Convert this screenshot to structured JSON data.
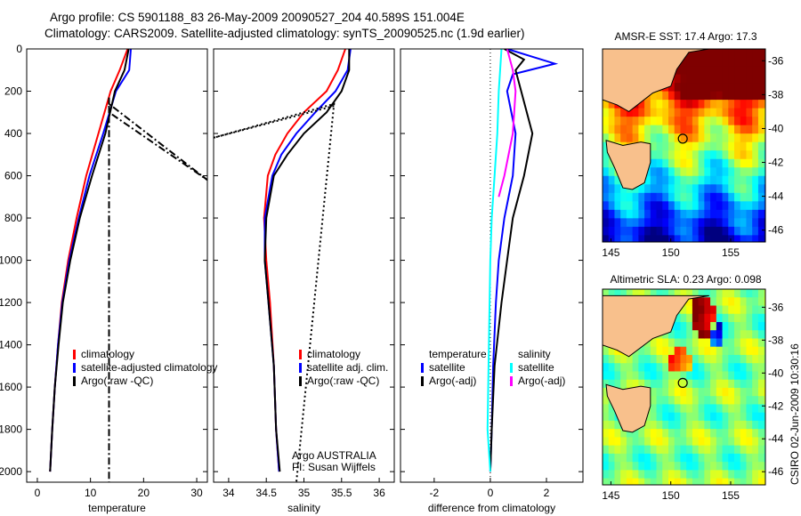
{
  "title_line1": "Argo profile: CS 5901188_83 26-May-2009 20090527_204 40.589S 151.004E",
  "title_line2": "Climatology: CARS2009. Satellite-adjusted climatology: synTS_20090525.nc (1.9d earlier)",
  "footer_stamp": "CSIRO 02-Jun-2009 10:30:16",
  "colors": {
    "climatology": "#ff0000",
    "satellite": "#0000ff",
    "argo": "#000000",
    "sal_sat": "#00ffff",
    "sal_argo": "#ff00ff",
    "land": "#f8c08c"
  },
  "chart_data": [
    {
      "type": "line",
      "id": "temp",
      "xlabel": "temperature",
      "xlim": [
        -2,
        32
      ],
      "ylim": [
        0,
        2050
      ],
      "xticks": [
        0,
        10,
        20,
        30
      ],
      "yticks": [
        0,
        200,
        400,
        600,
        800,
        1000,
        1200,
        1400,
        1600,
        1800,
        2000
      ],
      "legend": [
        "climatology",
        "satellite-adjusted climatology",
        "Argo(:raw -QC)"
      ],
      "series": [
        {
          "name": "climatology",
          "color": "#ff0000",
          "x": [
            17,
            15.5,
            13.8,
            11.5,
            9.2,
            7.4,
            5.8,
            4.6,
            3.9,
            3.3,
            2.8,
            2.4
          ],
          "y": [
            0,
            100,
            200,
            400,
            600,
            800,
            1000,
            1200,
            1400,
            1600,
            1800,
            2000
          ]
        },
        {
          "name": "satellite-adjusted climatology",
          "color": "#0000ff",
          "x": [
            17.6,
            17.3,
            14.8,
            12.4,
            9.8,
            7.8,
            6.0,
            4.7,
            3.9,
            3.3,
            2.8,
            2.4
          ],
          "y": [
            0,
            100,
            200,
            400,
            600,
            800,
            1000,
            1200,
            1400,
            1600,
            1800,
            2000
          ]
        },
        {
          "name": "Argo",
          "color": "#000000",
          "x": [
            17.2,
            16.4,
            14.6,
            12.8,
            10.3,
            8.0,
            6.2,
            4.8,
            4.0,
            3.3,
            2.8,
            2.4
          ],
          "y": [
            0,
            100,
            200,
            400,
            600,
            800,
            1000,
            1200,
            1400,
            1600,
            1800,
            2000
          ]
        },
        {
          "name": "Argo raw",
          "color": "#000000",
          "dash": "8,3,2,3",
          "x": [
            13.5,
            13.5,
            13.5,
            32,
            13.5,
            13.5,
            13.5
          ],
          "y": [
            230,
            300,
            260,
            620,
            300,
            1200,
            2050
          ]
        }
      ]
    },
    {
      "type": "line",
      "id": "sal",
      "xlabel": "salinity",
      "xlim": [
        33.8,
        36.2
      ],
      "ylim": [
        0,
        2050
      ],
      "xticks": [
        34,
        34.5,
        35,
        35.5,
        36
      ],
      "legend": [
        "climatology",
        "satellite adj. clim.",
        "Argo(:raw -QC)"
      ],
      "annotation": [
        "Argo AUSTRALIA",
        "PI: Susan Wijffels"
      ],
      "series": [
        {
          "name": "climatology",
          "color": "#ff0000",
          "x": [
            35.55,
            35.45,
            35.3,
            35.0,
            34.78,
            34.62,
            34.52,
            34.47,
            34.5,
            34.55,
            34.6,
            34.63,
            34.67
          ],
          "y": [
            0,
            100,
            200,
            300,
            400,
            500,
            600,
            800,
            1000,
            1200,
            1500,
            1800,
            2000
          ]
        },
        {
          "name": "satellite adj. clim.",
          "color": "#0000ff",
          "x": [
            35.62,
            35.58,
            35.42,
            35.15,
            34.9,
            34.7,
            34.58,
            34.48,
            34.48,
            34.53,
            34.6,
            34.63,
            34.67
          ],
          "y": [
            0,
            100,
            200,
            300,
            400,
            500,
            600,
            800,
            1000,
            1200,
            1500,
            1800,
            2000
          ]
        },
        {
          "name": "Argo",
          "color": "#000000",
          "x": [
            35.6,
            35.6,
            35.5,
            35.3,
            35.0,
            34.78,
            34.6,
            34.5,
            34.48,
            34.53,
            34.6,
            34.63,
            34.68
          ],
          "y": [
            0,
            100,
            200,
            300,
            400,
            500,
            600,
            800,
            1000,
            1200,
            1500,
            1800,
            2000
          ]
        },
        {
          "name": "Argo raw",
          "color": "#000000",
          "dash": "2,3",
          "x": [
            35.4,
            33.8,
            35.4,
            34.9
          ],
          "y": [
            270,
            420,
            260,
            2050
          ]
        }
      ]
    },
    {
      "type": "line",
      "id": "diff",
      "xlabel": "difference from climatology",
      "xlim": [
        -3.2,
        3.3
      ],
      "ylim": [
        0,
        2050
      ],
      "xticks": [
        -2,
        0,
        2
      ],
      "legend_left": [
        "temperature",
        "satellite",
        "Argo(-adj)"
      ],
      "legend_right": [
        "salinity",
        "satellite",
        "Argo(-adj)"
      ],
      "series": [
        {
          "name": "temperature satellite",
          "color": "#0000ff",
          "x": [
            0.6,
            2.3,
            0.8,
            0.6,
            0.9,
            0.8,
            0.5,
            0.3,
            0.2,
            0.1,
            0.05,
            0
          ],
          "y": [
            0,
            70,
            120,
            200,
            400,
            600,
            800,
            1000,
            1200,
            1500,
            1800,
            2000
          ]
        },
        {
          "name": "temperature Argo",
          "color": "#000000",
          "x": [
            0.5,
            1.2,
            0.9,
            1.1,
            1.5,
            1.2,
            0.8,
            0.6,
            0.4,
            0.15,
            0.05,
            0
          ],
          "y": [
            0,
            50,
            100,
            200,
            400,
            600,
            800,
            1000,
            1200,
            1500,
            1800,
            2000
          ]
        },
        {
          "name": "salinity satellite",
          "color": "#00ffff",
          "x": [
            0.4,
            0.3,
            0.25,
            0.15,
            0.05,
            0,
            -0.05,
            -0.1,
            0
          ],
          "y": [
            0,
            200,
            400,
            600,
            800,
            1000,
            1400,
            1800,
            2000
          ]
        },
        {
          "name": "salinity Argo",
          "color": "#ff00ff",
          "x": [
            0.6,
            0.8,
            0.9,
            0.8,
            0.5,
            0.3
          ],
          "y": [
            0,
            100,
            200,
            400,
            600,
            700
          ]
        }
      ]
    },
    {
      "type": "heatmap",
      "id": "sst",
      "title": "AMSR-E SST: 17.4 Argo: 17.3",
      "xticks": [
        145,
        150,
        155
      ],
      "yticks": [
        -36,
        -38,
        -40,
        -42,
        -44,
        -46
      ],
      "marker": [
        151.0,
        -40.6
      ]
    },
    {
      "type": "heatmap",
      "id": "sla",
      "title": "Altimetric SLA: 0.23 Argo: 0.098",
      "xticks": [
        145,
        150,
        155
      ],
      "yticks": [
        -36,
        -38,
        -40,
        -42,
        -44,
        -46
      ],
      "marker": [
        151.0,
        -40.6
      ]
    }
  ]
}
